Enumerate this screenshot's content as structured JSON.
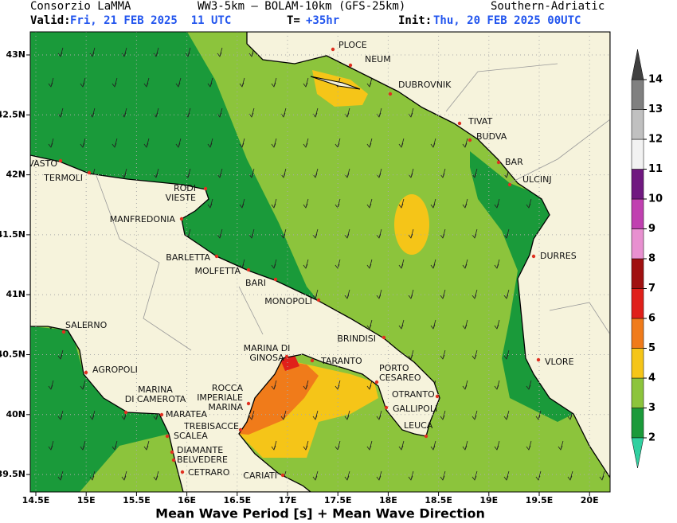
{
  "header": {
    "org": "Consorzio LaMMA",
    "model": "WW3-5km – BOLAM-10km (GFS-25km)",
    "region": "Southern-Adriatic",
    "valid_label": "Valid:",
    "valid_time": "Fri, 21 FEB 2025  11 UTC",
    "lead_label": "T=",
    "lead_time": "+35hr",
    "init_label": "Init:",
    "init_time": "Thu, 20 FEB 2025 00UTC"
  },
  "map": {
    "lon_ticks": [
      {
        "value": 14.5,
        "label": "14.5E"
      },
      {
        "value": 15,
        "label": "15E"
      },
      {
        "value": 15.5,
        "label": "15.5E"
      },
      {
        "value": 16,
        "label": "16E"
      },
      {
        "value": 16.5,
        "label": "16.5E"
      },
      {
        "value": 17,
        "label": "17E"
      },
      {
        "value": 17.5,
        "label": "17.5E"
      },
      {
        "value": 18,
        "label": "18E"
      },
      {
        "value": 18.5,
        "label": "18.5E"
      },
      {
        "value": 19,
        "label": "19E"
      },
      {
        "value": 19.5,
        "label": "19.5E"
      },
      {
        "value": 20,
        "label": "20E"
      }
    ],
    "lat_ticks": [
      {
        "value": 43,
        "label": "43N"
      },
      {
        "value": 42.5,
        "label": "42.5N"
      },
      {
        "value": 42,
        "label": "42N"
      },
      {
        "value": 41.5,
        "label": "41.5N"
      },
      {
        "value": 41,
        "label": "41N"
      },
      {
        "value": 40.5,
        "label": "40.5N"
      },
      {
        "value": 40,
        "label": "40N"
      },
      {
        "value": 39.5,
        "label": "39.5N"
      }
    ],
    "cities": [
      {
        "lines": [
          "PLOCE"
        ]
      },
      {
        "lines": [
          "NEUM"
        ]
      },
      {
        "lines": [
          "DUBROVNIK"
        ]
      },
      {
        "lines": [
          "TIVAT"
        ]
      },
      {
        "lines": [
          "BUDVA"
        ]
      },
      {
        "lines": [
          "BAR"
        ]
      },
      {
        "lines": [
          "ULCINJ"
        ]
      },
      {
        "lines": [
          "VASTO"
        ]
      },
      {
        "lines": [
          "TERMOLI"
        ]
      },
      {
        "lines": [
          "RODI",
          "VIESTE"
        ]
      },
      {
        "lines": [
          "MANFREDONIA"
        ]
      },
      {
        "lines": [
          "BARLETTA"
        ]
      },
      {
        "lines": [
          "MOLFETTA"
        ]
      },
      {
        "lines": [
          "BARI"
        ]
      },
      {
        "lines": [
          "MONOPOLI"
        ]
      },
      {
        "lines": [
          "BRINDISI"
        ]
      },
      {
        "lines": [
          "DURRES"
        ]
      },
      {
        "lines": [
          "VLORE"
        ]
      },
      {
        "lines": [
          "SALERNO"
        ]
      },
      {
        "lines": [
          "AGROPOLI"
        ]
      },
      {
        "lines": [
          "MARINA",
          "DI CAMEROTA"
        ]
      },
      {
        "lines": [
          "MARATEA"
        ]
      },
      {
        "lines": [
          "ROCCA",
          "IMPERIALE",
          "MARINA"
        ]
      },
      {
        "lines": [
          "TREBISACCE"
        ]
      },
      {
        "lines": [
          "SCALEA"
        ]
      },
      {
        "lines": [
          "DIAMANTE"
        ]
      },
      {
        "lines": [
          "BELVEDERE"
        ]
      },
      {
        "lines": [
          "CETRARO"
        ]
      },
      {
        "lines": [
          "CARIATI"
        ]
      },
      {
        "lines": [
          "MARINA DI",
          "GINOSA"
        ]
      },
      {
        "lines": [
          "TARANTO"
        ]
      },
      {
        "lines": [
          "PORTO",
          "CESAREO"
        ]
      },
      {
        "lines": [
          "OTRANTO"
        ]
      },
      {
        "lines": [
          "GALLIPOLI"
        ]
      },
      {
        "lines": [
          "LEUCA"
        ]
      }
    ]
  },
  "colorbar": {
    "levels": [
      2,
      3,
      4,
      5,
      6,
      7,
      8,
      9,
      10,
      11,
      12,
      13,
      14
    ],
    "colors": [
      "#1a9a3a",
      "#8cc43c",
      "#f5c518",
      "#f07b1a",
      "#e0201a",
      "#a01010",
      "#e890d0",
      "#c040b0",
      "#701880",
      "#f2f2f2",
      "#c0c0c0",
      "#808080"
    ],
    "under_color": "#30d0a0",
    "over_color": "#404040"
  },
  "footer": {
    "title": "Mean Wave Period [s] + Mean Wave Direction"
  }
}
